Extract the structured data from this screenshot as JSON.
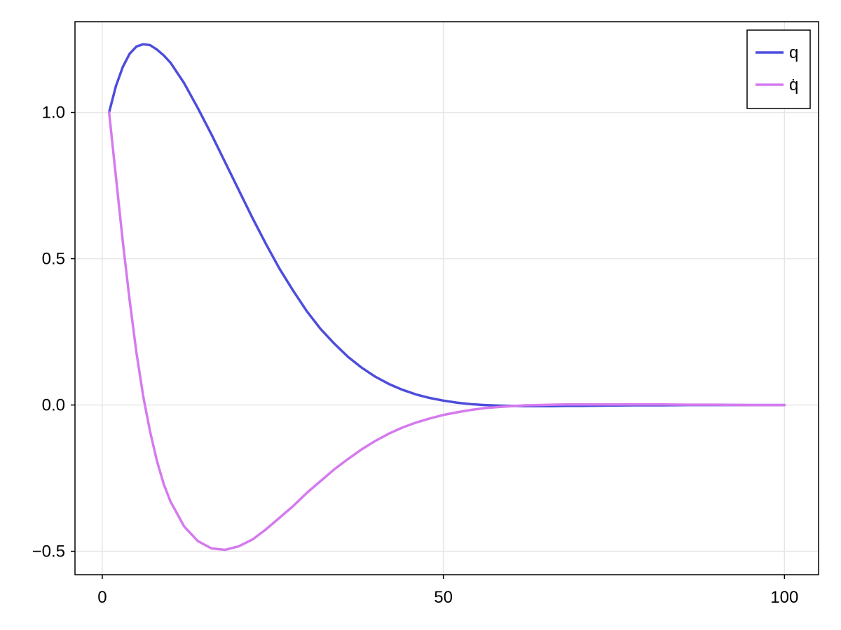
{
  "chart_data": {
    "type": "line",
    "title": "",
    "xlabel": "",
    "ylabel": "",
    "xlim": [
      -4,
      105
    ],
    "ylim": [
      -0.58,
      1.31
    ],
    "xticks": [
      0,
      50,
      100
    ],
    "xtick_labels": [
      "0",
      "50",
      "100"
    ],
    "yticks": [
      -0.5,
      0.0,
      0.5,
      1.0
    ],
    "ytick_labels": [
      "−0.5",
      "0.0",
      "0.5",
      "1.0"
    ],
    "grid": true,
    "legend_position": "top-right",
    "x": [
      1,
      2,
      3,
      4,
      5,
      6,
      7,
      8,
      9,
      10,
      12,
      14,
      16,
      18,
      20,
      22,
      24,
      26,
      28,
      30,
      32,
      34,
      36,
      38,
      40,
      42,
      44,
      46,
      48,
      50,
      52,
      54,
      56,
      58,
      60,
      62,
      64,
      66,
      68,
      70,
      74,
      78,
      82,
      86,
      90,
      95,
      100
    ],
    "series": [
      {
        "name": "q",
        "color": "#4d4ddb",
        "values": [
          1.0,
          1.09,
          1.155,
          1.2,
          1.225,
          1.233,
          1.23,
          1.215,
          1.195,
          1.17,
          1.1,
          1.015,
          0.925,
          0.83,
          0.735,
          0.64,
          0.55,
          0.465,
          0.39,
          0.32,
          0.26,
          0.21,
          0.165,
          0.128,
          0.097,
          0.072,
          0.052,
          0.036,
          0.024,
          0.015,
          0.008,
          0.003,
          0.0,
          -0.002,
          -0.003,
          -0.004,
          -0.004,
          -0.004,
          -0.003,
          -0.003,
          -0.002,
          -0.001,
          -0.001,
          0.0,
          0.0,
          0.0,
          0.0
        ]
      },
      {
        "name": "q̇",
        "color": "#d57aee",
        "values": [
          1.0,
          0.78,
          0.56,
          0.36,
          0.18,
          0.03,
          -0.09,
          -0.19,
          -0.27,
          -0.33,
          -0.415,
          -0.465,
          -0.49,
          -0.495,
          -0.483,
          -0.46,
          -0.425,
          -0.385,
          -0.345,
          -0.3,
          -0.26,
          -0.22,
          -0.185,
          -0.152,
          -0.123,
          -0.098,
          -0.077,
          -0.06,
          -0.046,
          -0.034,
          -0.025,
          -0.017,
          -0.011,
          -0.007,
          -0.004,
          -0.001,
          0.0,
          0.001,
          0.002,
          0.002,
          0.002,
          0.002,
          0.002,
          0.001,
          0.001,
          0.0,
          0.0
        ]
      }
    ]
  }
}
